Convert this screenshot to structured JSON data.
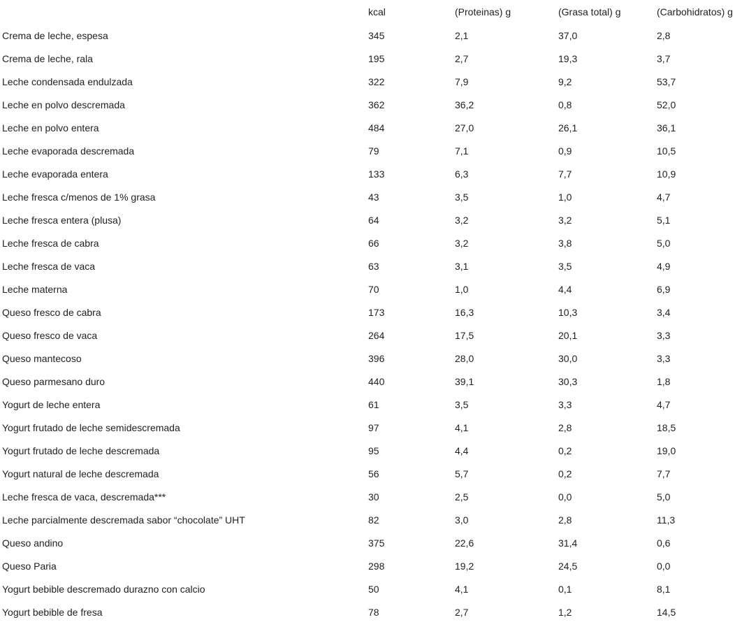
{
  "table": {
    "headers": [
      "",
      "kcal",
      "(Proteinas) g",
      "(Grasa total) g",
      "(Carbohidratos) g"
    ],
    "rows": [
      [
        "Crema de leche, espesa",
        "345",
        "2,1",
        "37,0",
        "2,8"
      ],
      [
        "Crema de leche, rala",
        "195",
        "2,7",
        "19,3",
        "3,7"
      ],
      [
        "Leche condensada endulzada",
        "322",
        "7,9",
        "9,2",
        "53,7"
      ],
      [
        "Leche en polvo descremada",
        "362",
        "36,2",
        "0,8",
        "52,0"
      ],
      [
        "Leche en polvo entera",
        "484",
        "27,0",
        "26,1",
        "36,1"
      ],
      [
        "Leche evaporada descremada",
        "79",
        "7,1",
        "0,9",
        "10,5"
      ],
      [
        "Leche evaporada entera",
        "133",
        "6,3",
        "7,7",
        "10,9"
      ],
      [
        "Leche fresca c/menos de 1% grasa",
        "43",
        "3,5",
        "1,0",
        "4,7"
      ],
      [
        "Leche fresca entera (plusa)",
        "64",
        "3,2",
        "3,2",
        "5,1"
      ],
      [
        "Leche fresca de cabra",
        "66",
        "3,2",
        "3,8",
        "5,0"
      ],
      [
        "Leche fresca de vaca",
        "63",
        "3,1",
        "3,5",
        "4,9"
      ],
      [
        "Leche materna",
        "70",
        "1,0",
        "4,4",
        "6,9"
      ],
      [
        "Queso fresco de cabra",
        "173",
        "16,3",
        "10,3",
        "3,4"
      ],
      [
        "Queso fresco de vaca",
        "264",
        "17,5",
        "20,1",
        "3,3"
      ],
      [
        "Queso mantecoso",
        "396",
        "28,0",
        "30,0",
        "3,3"
      ],
      [
        "Queso parmesano duro",
        "440",
        "39,1",
        "30,3",
        "1,8"
      ],
      [
        "Yogurt de leche entera",
        "61",
        "3,5",
        "3,3",
        "4,7"
      ],
      [
        "Yogurt frutado de leche semidescremada",
        "97",
        "4,1",
        "2,8",
        "18,5"
      ],
      [
        "Yogurt frutado de leche descremada",
        "95",
        "4,4",
        "0,2",
        "19,0"
      ],
      [
        "Yogurt natural de leche descremada",
        "56",
        "5,7",
        "0,2",
        "7,7"
      ],
      [
        "Leche fresca de vaca, descremada***",
        "30",
        "2,5",
        "0,0",
        "5,0"
      ],
      [
        "Leche parcialmente descremada sabor “chocolate” UHT",
        "82",
        "3,0",
        "2,8",
        "11,3"
      ],
      [
        "Queso andino",
        "375",
        "22,6",
        "31,4",
        "0,6"
      ],
      [
        "Queso Paria",
        "298",
        "19,2",
        "24,5",
        "0,0"
      ],
      [
        "Yogurt bebible descremado durazno con calcio",
        "50",
        "4,1",
        "0,1",
        "8,1"
      ],
      [
        "Yogurt bebible de fresa",
        "78",
        "2,7",
        "1,2",
        "14,5"
      ]
    ]
  }
}
